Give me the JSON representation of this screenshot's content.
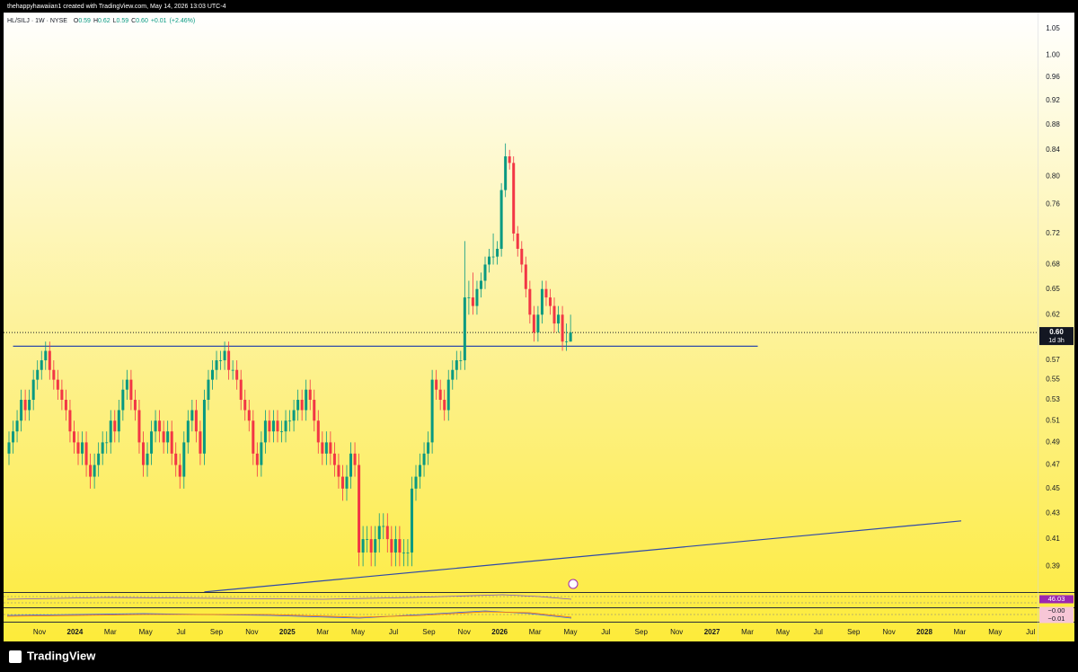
{
  "attribution": "thehappyhawaiian1 created with TradingView.com, May 14, 2026 13:03 UTC-4",
  "brand": "TradingView",
  "chart_data": {
    "type": "candlestick",
    "legend_symbol": "HL/SILJ · 1W · NYSE",
    "legend_items": [
      {
        "key": "O",
        "value": 0.59
      },
      {
        "key": "H",
        "value": 0.62
      },
      {
        "key": "L",
        "value": 0.59
      },
      {
        "key": "C",
        "value": 0.6,
        "label": "0.60"
      }
    ],
    "change": {
      "value": 0.01,
      "label": "+0.01"
    },
    "change_pct": {
      "value": 2.46,
      "label": "(+2.46%)"
    },
    "up_color": "#089981",
    "down_color": "#f23645",
    "log_scale": true,
    "grid": false,
    "ylim": [
      0.38,
      1.07
    ],
    "yticks": [
      0.39,
      0.41,
      0.43,
      0.45,
      0.47,
      0.49,
      0.51,
      0.53,
      0.55,
      0.57,
      0.62,
      0.65,
      0.68,
      0.72,
      0.76,
      {
        "value": 0.8,
        "label": "0.80"
      },
      0.84,
      0.88,
      0.92,
      0.96,
      {
        "value": 1,
        "label": "1.00"
      },
      1.05
    ],
    "time_labels": [
      "Nov",
      "2024",
      "Mar",
      "May",
      "Jul",
      "Sep",
      "Nov",
      "2025",
      "Mar",
      "May",
      "Jul",
      "Sep",
      "Nov",
      "2026",
      "Mar",
      "May",
      "Jul",
      "Sep",
      "Nov",
      "2027",
      "Mar",
      "May",
      "Jul",
      "Sep",
      "Nov",
      "2028",
      "Mar",
      "May",
      "Jul"
    ],
    "last_price": {
      "value": 0.6,
      "label": "0.60"
    },
    "countdown": "1d 3h",
    "lines": [
      {
        "x": [
          1,
          184
        ],
        "y": [
          0.585,
          0.585
        ],
        "color": "#2f4aa8"
      },
      {
        "x": [
          48,
          234
        ],
        "y": [
          0.372,
          0.424
        ],
        "color": "#2f4aa8"
      }
    ],
    "indicator_labels": [
      {
        "value": 46.03,
        "color": "#9c27b0"
      },
      {
        "value": 0,
        "label": "−0.00",
        "color": "#f7c6d6"
      },
      {
        "value": -0.01,
        "label": "−0.01",
        "color": "#f7c6d6"
      }
    ],
    "ohlc": [
      [
        0.48,
        0.5,
        0.47,
        0.49
      ],
      [
        0.49,
        0.51,
        0.48,
        0.5
      ],
      [
        0.5,
        0.52,
        0.49,
        0.51
      ],
      [
        0.51,
        0.54,
        0.5,
        0.53
      ],
      [
        0.53,
        0.54,
        0.51,
        0.52
      ],
      [
        0.52,
        0.54,
        0.51,
        0.53
      ],
      [
        0.53,
        0.56,
        0.52,
        0.55
      ],
      [
        0.55,
        0.57,
        0.54,
        0.56
      ],
      [
        0.56,
        0.58,
        0.55,
        0.57
      ],
      [
        0.57,
        0.59,
        0.56,
        0.58
      ],
      [
        0.58,
        0.59,
        0.55,
        0.56
      ],
      [
        0.56,
        0.57,
        0.54,
        0.55
      ],
      [
        0.55,
        0.56,
        0.53,
        0.54
      ],
      [
        0.54,
        0.55,
        0.52,
        0.53
      ],
      [
        0.53,
        0.54,
        0.51,
        0.52
      ],
      [
        0.52,
        0.53,
        0.49,
        0.5
      ],
      [
        0.5,
        0.51,
        0.48,
        0.49
      ],
      [
        0.49,
        0.5,
        0.47,
        0.48
      ],
      [
        0.48,
        0.5,
        0.47,
        0.49
      ],
      [
        0.49,
        0.5,
        0.46,
        0.47
      ],
      [
        0.47,
        0.48,
        0.45,
        0.46
      ],
      [
        0.46,
        0.48,
        0.45,
        0.47
      ],
      [
        0.47,
        0.49,
        0.46,
        0.48
      ],
      [
        0.48,
        0.5,
        0.47,
        0.49
      ],
      [
        0.49,
        0.5,
        0.48,
        0.49
      ],
      [
        0.49,
        0.52,
        0.48,
        0.51
      ],
      [
        0.51,
        0.52,
        0.49,
        0.5
      ],
      [
        0.5,
        0.53,
        0.49,
        0.52
      ],
      [
        0.52,
        0.55,
        0.51,
        0.54
      ],
      [
        0.54,
        0.56,
        0.53,
        0.55
      ],
      [
        0.55,
        0.56,
        0.52,
        0.53
      ],
      [
        0.53,
        0.54,
        0.51,
        0.52
      ],
      [
        0.52,
        0.53,
        0.48,
        0.49
      ],
      [
        0.49,
        0.5,
        0.46,
        0.47
      ],
      [
        0.47,
        0.49,
        0.46,
        0.48
      ],
      [
        0.48,
        0.51,
        0.47,
        0.5
      ],
      [
        0.5,
        0.52,
        0.49,
        0.51
      ],
      [
        0.51,
        0.52,
        0.49,
        0.5
      ],
      [
        0.5,
        0.51,
        0.48,
        0.49
      ],
      [
        0.49,
        0.51,
        0.48,
        0.5
      ],
      [
        0.5,
        0.51,
        0.47,
        0.48
      ],
      [
        0.48,
        0.49,
        0.46,
        0.47
      ],
      [
        0.47,
        0.48,
        0.45,
        0.46
      ],
      [
        0.46,
        0.5,
        0.45,
        0.49
      ],
      [
        0.49,
        0.52,
        0.48,
        0.51
      ],
      [
        0.51,
        0.53,
        0.5,
        0.52
      ],
      [
        0.52,
        0.53,
        0.49,
        0.5
      ],
      [
        0.5,
        0.51,
        0.47,
        0.48
      ],
      [
        0.48,
        0.54,
        0.47,
        0.53
      ],
      [
        0.53,
        0.56,
        0.52,
        0.55
      ],
      [
        0.55,
        0.57,
        0.54,
        0.56
      ],
      [
        0.56,
        0.58,
        0.55,
        0.57
      ],
      [
        0.57,
        0.58,
        0.56,
        0.57
      ],
      [
        0.57,
        0.59,
        0.56,
        0.58
      ],
      [
        0.58,
        0.59,
        0.55,
        0.56
      ],
      [
        0.56,
        0.57,
        0.55,
        0.56
      ],
      [
        0.56,
        0.57,
        0.54,
        0.55
      ],
      [
        0.55,
        0.56,
        0.52,
        0.53
      ],
      [
        0.53,
        0.54,
        0.51,
        0.52
      ],
      [
        0.52,
        0.53,
        0.5,
        0.51
      ],
      [
        0.51,
        0.52,
        0.47,
        0.48
      ],
      [
        0.48,
        0.49,
        0.46,
        0.47
      ],
      [
        0.47,
        0.5,
        0.46,
        0.49
      ],
      [
        0.49,
        0.52,
        0.48,
        0.51
      ],
      [
        0.51,
        0.52,
        0.49,
        0.5
      ],
      [
        0.5,
        0.52,
        0.49,
        0.51
      ],
      [
        0.51,
        0.52,
        0.49,
        0.5
      ],
      [
        0.5,
        0.51,
        0.49,
        0.5
      ],
      [
        0.5,
        0.52,
        0.49,
        0.51
      ],
      [
        0.51,
        0.52,
        0.5,
        0.51
      ],
      [
        0.51,
        0.53,
        0.5,
        0.52
      ],
      [
        0.52,
        0.54,
        0.51,
        0.53
      ],
      [
        0.53,
        0.54,
        0.51,
        0.52
      ],
      [
        0.52,
        0.55,
        0.51,
        0.54
      ],
      [
        0.54,
        0.55,
        0.52,
        0.53
      ],
      [
        0.53,
        0.54,
        0.5,
        0.51
      ],
      [
        0.51,
        0.52,
        0.48,
        0.49
      ],
      [
        0.49,
        0.5,
        0.47,
        0.48
      ],
      [
        0.48,
        0.5,
        0.47,
        0.49
      ],
      [
        0.49,
        0.5,
        0.47,
        0.48
      ],
      [
        0.48,
        0.49,
        0.46,
        0.47
      ],
      [
        0.47,
        0.48,
        0.45,
        0.46
      ],
      [
        0.46,
        0.47,
        0.44,
        0.45
      ],
      [
        0.45,
        0.47,
        0.44,
        0.46
      ],
      [
        0.46,
        0.49,
        0.45,
        0.48
      ],
      [
        0.48,
        0.49,
        0.46,
        0.47
      ],
      [
        0.47,
        0.48,
        0.39,
        0.4
      ],
      [
        0.4,
        0.42,
        0.39,
        0.41
      ],
      [
        0.41,
        0.42,
        0.4,
        0.41
      ],
      [
        0.41,
        0.42,
        0.39,
        0.4
      ],
      [
        0.4,
        0.42,
        0.39,
        0.41
      ],
      [
        0.41,
        0.43,
        0.4,
        0.42
      ],
      [
        0.42,
        0.43,
        0.41,
        0.42
      ],
      [
        0.42,
        0.43,
        0.4,
        0.41
      ],
      [
        0.41,
        0.42,
        0.39,
        0.4
      ],
      [
        0.4,
        0.42,
        0.39,
        0.41
      ],
      [
        0.41,
        0.42,
        0.39,
        0.4
      ],
      [
        0.4,
        0.41,
        0.39,
        0.4
      ],
      [
        0.4,
        0.41,
        0.39,
        0.4
      ],
      [
        0.4,
        0.46,
        0.39,
        0.45
      ],
      [
        0.45,
        0.47,
        0.44,
        0.46
      ],
      [
        0.46,
        0.48,
        0.45,
        0.47
      ],
      [
        0.47,
        0.49,
        0.46,
        0.48
      ],
      [
        0.48,
        0.5,
        0.47,
        0.49
      ],
      [
        0.49,
        0.56,
        0.48,
        0.55
      ],
      [
        0.55,
        0.56,
        0.53,
        0.54
      ],
      [
        0.54,
        0.55,
        0.52,
        0.53
      ],
      [
        0.53,
        0.54,
        0.51,
        0.52
      ],
      [
        0.52,
        0.56,
        0.51,
        0.55
      ],
      [
        0.55,
        0.57,
        0.54,
        0.56
      ],
      [
        0.56,
        0.58,
        0.55,
        0.57
      ],
      [
        0.57,
        0.58,
        0.56,
        0.57
      ],
      [
        0.57,
        0.71,
        0.56,
        0.64
      ],
      [
        0.64,
        0.66,
        0.62,
        0.64
      ],
      [
        0.64,
        0.67,
        0.62,
        0.63
      ],
      [
        0.63,
        0.66,
        0.62,
        0.65
      ],
      [
        0.65,
        0.67,
        0.64,
        0.66
      ],
      [
        0.66,
        0.69,
        0.65,
        0.68
      ],
      [
        0.68,
        0.7,
        0.67,
        0.69
      ],
      [
        0.69,
        0.72,
        0.68,
        0.69
      ],
      [
        0.69,
        0.71,
        0.68,
        0.7
      ],
      [
        0.7,
        0.79,
        0.69,
        0.78
      ],
      [
        0.78,
        0.85,
        0.77,
        0.83
      ],
      [
        0.83,
        0.84,
        0.81,
        0.82
      ],
      [
        0.82,
        0.83,
        0.71,
        0.72
      ],
      [
        0.72,
        0.73,
        0.69,
        0.7
      ],
      [
        0.7,
        0.71,
        0.67,
        0.68
      ],
      [
        0.68,
        0.69,
        0.64,
        0.65
      ],
      [
        0.65,
        0.66,
        0.61,
        0.62
      ],
      [
        0.62,
        0.63,
        0.59,
        0.6
      ],
      [
        0.6,
        0.63,
        0.59,
        0.62
      ],
      [
        0.62,
        0.66,
        0.61,
        0.65
      ],
      [
        0.65,
        0.66,
        0.63,
        0.64
      ],
      [
        0.64,
        0.65,
        0.62,
        0.63
      ],
      [
        0.63,
        0.64,
        0.6,
        0.61
      ],
      [
        0.61,
        0.63,
        0.6,
        0.62
      ],
      [
        0.62,
        0.63,
        0.58,
        0.59
      ],
      [
        0.59,
        0.61,
        0.58,
        0.59
      ],
      [
        0.59,
        0.62,
        0.59,
        0.6
      ]
    ]
  }
}
